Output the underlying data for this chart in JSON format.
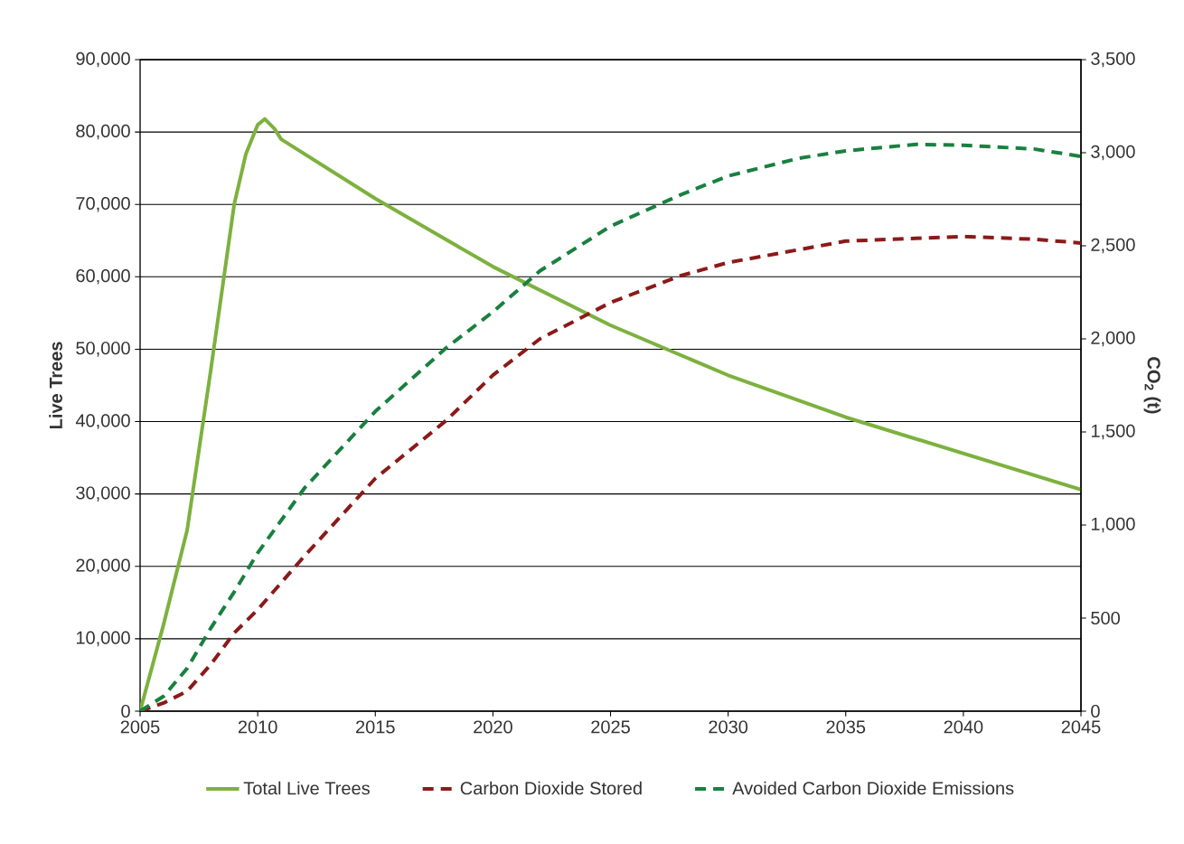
{
  "chart_data": {
    "type": "line",
    "xlabel": null,
    "ylabel": "Live Trees",
    "y2label": "CO$_{2}$ (t)",
    "xlim": [
      2005,
      2045
    ],
    "xticks": [
      2005,
      2010,
      2015,
      2020,
      2025,
      2030,
      2035,
      2040,
      2045
    ],
    "ylim": [
      0,
      90000
    ],
    "yticks": [
      {
        "value": 0,
        "label": "0"
      },
      {
        "value": 10000,
        "label": "10,000"
      },
      {
        "value": 20000,
        "label": "20,000"
      },
      {
        "value": 30000,
        "label": "30,000"
      },
      {
        "value": 40000,
        "label": "40,000"
      },
      {
        "value": 50000,
        "label": "50,000"
      },
      {
        "value": 60000,
        "label": "60,000"
      },
      {
        "value": 70000,
        "label": "70,000"
      },
      {
        "value": 80000,
        "label": "80,000"
      },
      {
        "value": 90000,
        "label": "90,000"
      }
    ],
    "y2lim": [
      0,
      3500
    ],
    "y2ticks": [
      {
        "value": 0,
        "label": "0"
      },
      {
        "value": 500,
        "label": "500"
      },
      {
        "value": 1000,
        "label": "1,000"
      },
      {
        "value": 1500,
        "label": "1,500"
      },
      {
        "value": 2000,
        "label": "2,000"
      },
      {
        "value": 2500,
        "label": "2,500"
      },
      {
        "value": 3000,
        "label": "3,000"
      },
      {
        "value": 3500,
        "label": "3,500"
      }
    ],
    "grid": "y",
    "legend": "bottom",
    "marker": "none",
    "series": [
      {
        "name": "Total Live Trees",
        "color": "#7db13f",
        "line_style": "solid",
        "x": [
          2005,
          2006,
          2007,
          2008,
          2009,
          2009.5,
          2010,
          2010.3,
          2010.7,
          2011,
          2015,
          2020,
          2025,
          2030,
          2035,
          2040,
          2045
        ],
        "values": [
          0,
          12000,
          25000,
          47000,
          70000,
          77000,
          81000,
          81800,
          80500,
          79000,
          70800,
          61400,
          53300,
          46400,
          40600,
          35600,
          30600
        ]
      },
      {
        "name": "Carbon Dioxide Stored",
        "color": "#8b1a1a",
        "line_style": "dashed",
        "axis": "y2",
        "x": [
          2005,
          2006,
          2007,
          2008,
          2009,
          2010,
          2012,
          2015,
          2018,
          2020,
          2022,
          2025,
          2028,
          2030,
          2035,
          2040,
          2043,
          2045
        ],
        "values": [
          0,
          44,
          107,
          250,
          420,
          545,
          835,
          1250,
          1560,
          1805,
          2000,
          2195,
          2340,
          2410,
          2525,
          2550,
          2535,
          2515
        ]
      },
      {
        "name": "Avoided Carbon Dioxide Emissions",
        "color": "#1a8040",
        "line_style": "dashed",
        "axis": "y2",
        "x": [
          2005,
          2006,
          2007,
          2008,
          2009,
          2010,
          2012,
          2015,
          2018,
          2020,
          2022,
          2025,
          2028,
          2030,
          2033,
          2035,
          2038,
          2040,
          2043,
          2045
        ],
        "values": [
          0,
          80,
          230,
          445,
          640,
          850,
          1200,
          1610,
          1950,
          2145,
          2365,
          2605,
          2775,
          2875,
          2970,
          3010,
          3045,
          3040,
          3020,
          2980
        ]
      }
    ]
  }
}
